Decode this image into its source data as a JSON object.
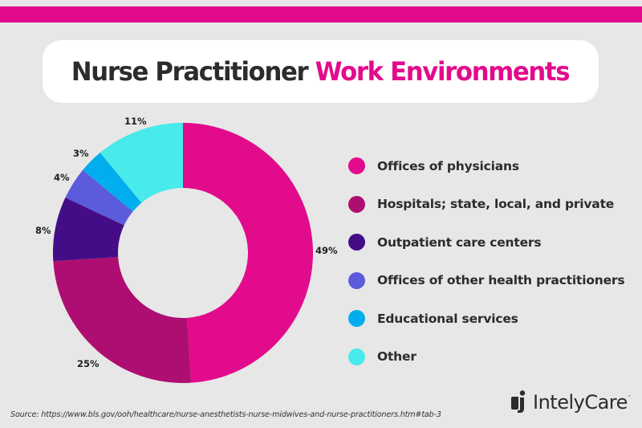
{
  "header": {
    "title_part1": "Nurse Practitioner",
    "title_part2": "Work Environments",
    "band_color": "#e20b8c"
  },
  "chart_data": {
    "type": "pie",
    "subtype": "donut",
    "title": "Nurse Practitioner Work Environments",
    "categories": [
      "Offices of physicians",
      "Hospitals; state, local, and private",
      "Outpatient care centers",
      "Offices of other health practitioners",
      "Educational services",
      "Other"
    ],
    "values": [
      49,
      25,
      8,
      4,
      3,
      11
    ],
    "labels": [
      "49%",
      "25%",
      "8%",
      "4%",
      "3%",
      "11%"
    ],
    "colors": [
      "#e20b8c",
      "#ae0e71",
      "#440d87",
      "#5b5bdb",
      "#02aded",
      "#48eaea"
    ],
    "start_angle": "12 o'clock",
    "direction": "clockwise",
    "legend_position": "right"
  },
  "legend": {
    "items": [
      {
        "label": "Offices of physicians",
        "color": "#e20b8c"
      },
      {
        "label": "Hospitals; state, local, and private",
        "color": "#ae0e71"
      },
      {
        "label": "Outpatient care centers",
        "color": "#440d87"
      },
      {
        "label": "Offices of other health practitioners",
        "color": "#5b5bdb"
      },
      {
        "label": "Educational services",
        "color": "#02aded"
      },
      {
        "label": "Other",
        "color": "#48eaea"
      }
    ]
  },
  "footer": {
    "source": "Source: https://www.bls.gov/ooh/healthcare/nurse-anesthetists-nurse-midwives-and-nurse-practitioners.htm#tab-3",
    "logo_text": "IntelyCare",
    "logo_tm": "™"
  }
}
